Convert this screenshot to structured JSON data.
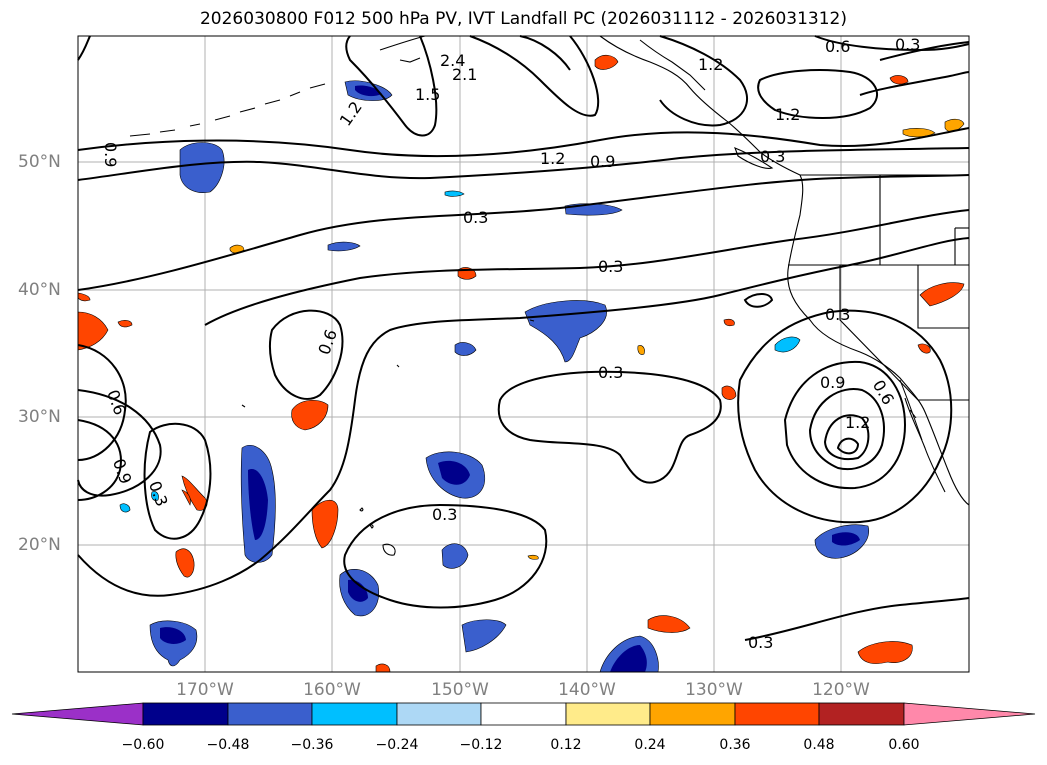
{
  "title": "2026030800 F012 500 hPa PV, IVT Landfall PC (2026031112 - 2026031312)",
  "lat_labels": [
    "50°N",
    "40°N",
    "30°N",
    "20°N"
  ],
  "lon_labels": [
    "170°W",
    "160°W",
    "150°W",
    "140°W",
    "130°W",
    "120°W"
  ],
  "contour_labels": [
    "2.4",
    "2.1",
    "1.5",
    "1.2",
    "1.2",
    "0.6",
    "0.3",
    "1.2",
    "0.9",
    "0.9",
    "0.3",
    "0.3",
    "0.6",
    "0.3",
    "0.6",
    "0.9",
    "0.3",
    "0.3",
    "0.3",
    "0.3",
    "0.9",
    "0.6",
    "1.2",
    "0.3",
    "1.2"
  ],
  "colorbar": {
    "ticks": [
      "−0.60",
      "−0.48",
      "−0.36",
      "−0.24",
      "−0.12",
      "0.12",
      "0.24",
      "0.36",
      "0.48",
      "0.60"
    ],
    "colors": [
      "#9b30c8",
      "#00008b",
      "#3a5fcd",
      "#00bfff",
      "#add8f5",
      "#ffffff",
      "#ffeb8a",
      "#ffa500",
      "#ff4500",
      "#b22222",
      "#ff88aa"
    ]
  },
  "colors": {
    "land_outline": "#000000",
    "grid": "#b0b0b0",
    "contour": "#000000"
  }
}
